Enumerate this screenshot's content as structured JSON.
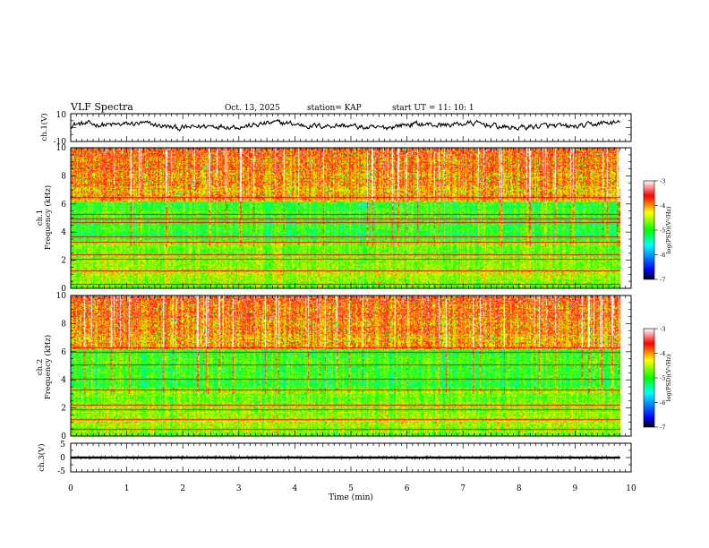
{
  "header": {
    "title": "VLF Spectra",
    "date": "Oct. 13, 2025",
    "station": "station= KAP",
    "start_ut": "start  UT  =   11: 10: 1"
  },
  "chart_data": [
    {
      "type": "line",
      "panel": "ch1-waveform",
      "ylabel": "ch.1(V)",
      "ylim": [
        -10,
        10
      ],
      "ytick_labels": [
        "10",
        "-10"
      ],
      "xlim": [
        0,
        10
      ],
      "series": [
        {
          "name": "ch.1 voltage",
          "mean": 1.5,
          "amplitude": 4.5
        }
      ]
    },
    {
      "type": "heatmap",
      "panel": "ch1-spectrogram",
      "ylabel_line1": "ch.1",
      "ylabel_line2": "Frequency (kHz)",
      "ylim": [
        0,
        10
      ],
      "ytick_labels": [
        "0",
        "2",
        "4",
        "6",
        "8",
        "10"
      ],
      "xlim": [
        0,
        9.8
      ],
      "horizontal_lines_khz": [
        0.3,
        1.3,
        2.1,
        2.4,
        3.3,
        3.7,
        4.7,
        5.0,
        5.3,
        6.5
      ],
      "colorbar": {
        "label": "log(PSD)(V²/Hz)",
        "range": [
          -7,
          -3
        ],
        "tick_labels": [
          "-3",
          "-4",
          "-5",
          "-6",
          "-7"
        ]
      }
    },
    {
      "type": "heatmap",
      "panel": "ch2-spectrogram",
      "ylabel_line1": "ch.2",
      "ylabel_line2": "Frequency (kHz)",
      "ylim": [
        0,
        10
      ],
      "ytick_labels": [
        "0",
        "2",
        "4",
        "6",
        "8",
        "10"
      ],
      "xlim": [
        0,
        9.8
      ],
      "horizontal_lines_khz": [
        0.5,
        1.2,
        1.9,
        2.2,
        3.3,
        4.1,
        5.1,
        6.0,
        6.3
      ],
      "colorbar": {
        "label": "log(PSD)(V²/Hz)",
        "range": [
          -7,
          -3
        ],
        "tick_labels": [
          "-3",
          "-4",
          "-5",
          "-6",
          "-7"
        ]
      }
    },
    {
      "type": "line",
      "panel": "ch3-waveform",
      "ylabel": "ch.3(V)",
      "ylim": [
        -5,
        5
      ],
      "ytick_labels": [
        "5",
        "0",
        "-5"
      ],
      "xlim": [
        0,
        10
      ],
      "series": [
        {
          "name": "ch.3 voltage",
          "mean": 0,
          "amplitude": 0.4
        }
      ]
    }
  ],
  "xaxis": {
    "label": "Time  (min)",
    "ticks": [
      "0",
      "1",
      "2",
      "3",
      "4",
      "5",
      "6",
      "7",
      "8",
      "9",
      "10"
    ],
    "range": [
      0,
      10
    ]
  },
  "colors": {
    "line": "#000000",
    "frame": "#000000",
    "background": "#ffffff"
  }
}
